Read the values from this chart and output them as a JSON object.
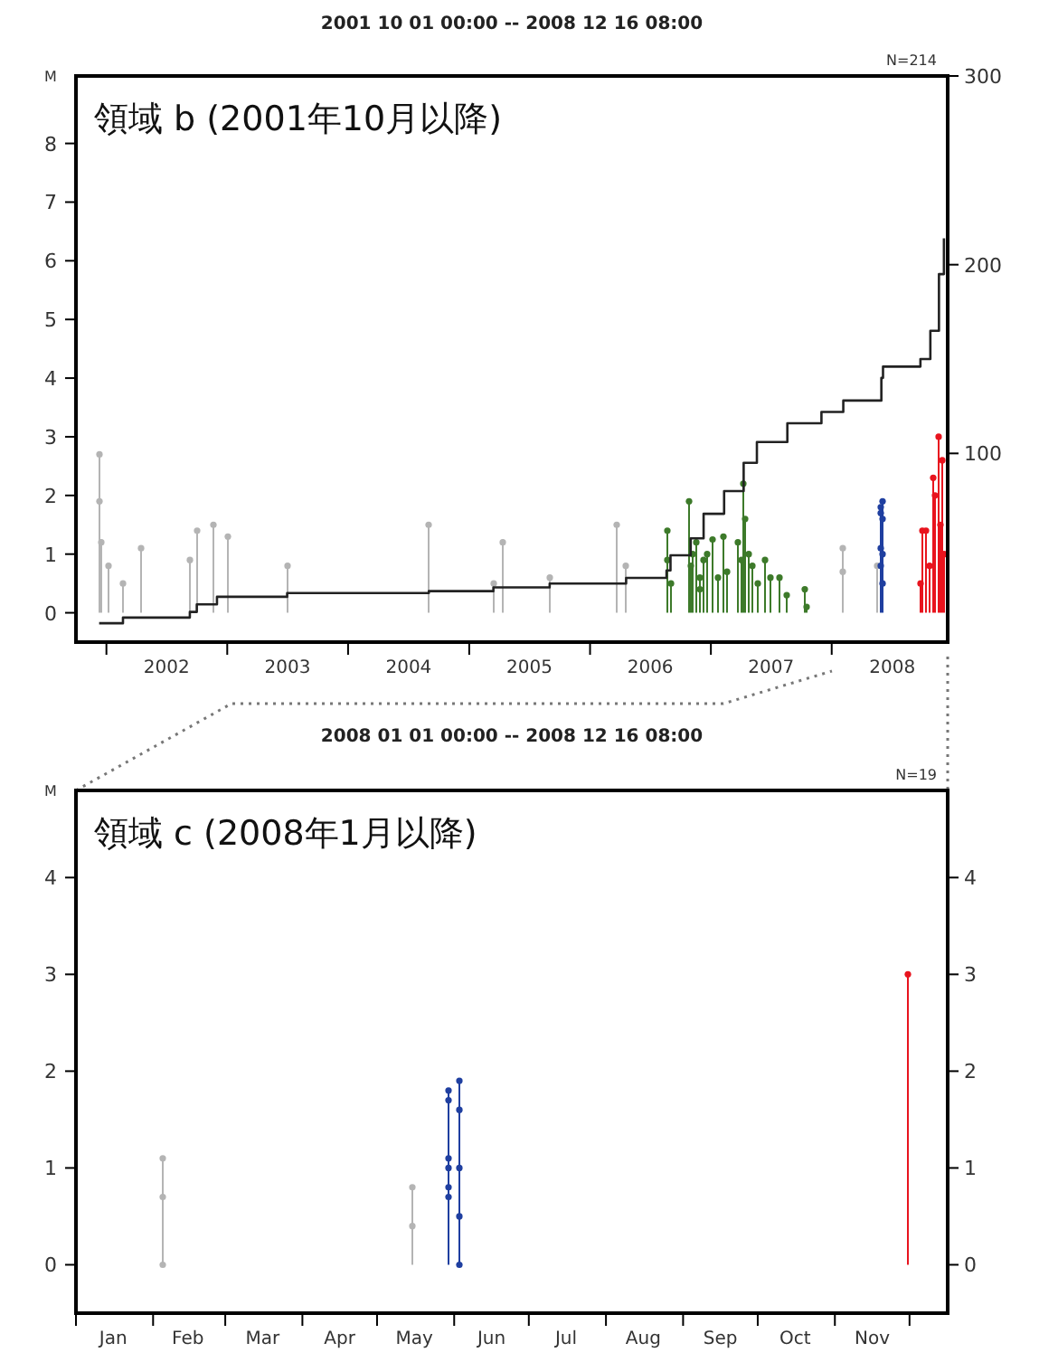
{
  "chart_data": [
    {
      "type": "lollipop",
      "title": "2001 10 01 00:00 -- 2008 12 16 08:00",
      "ylabel": "M",
      "annotations": [
        "N=214",
        "領域 b (2001年10月以降)"
      ],
      "xlim": [
        "2001-10-01",
        "2008-12-16T08:00"
      ],
      "xticks": [
        {
          "value": "2002-01-01",
          "label": null
        },
        {
          "value": "2002-07-02",
          "label": "2002"
        },
        {
          "value": "2003-01-01",
          "label": null
        },
        {
          "value": "2003-07-02",
          "label": "2003"
        },
        {
          "value": "2004-01-01",
          "label": null
        },
        {
          "value": "2004-07-02",
          "label": "2004"
        },
        {
          "value": "2005-01-01",
          "label": null
        },
        {
          "value": "2005-07-02",
          "label": "2005"
        },
        {
          "value": "2006-01-01",
          "label": null
        },
        {
          "value": "2006-07-02",
          "label": "2006"
        },
        {
          "value": "2007-01-01",
          "label": null
        },
        {
          "value": "2007-07-02",
          "label": "2007"
        },
        {
          "value": "2008-01-01",
          "label": null
        },
        {
          "value": "2008-07-02",
          "label": "2008"
        }
      ],
      "ylim": [
        -0.5,
        9.15
      ],
      "yticks": [
        0,
        1,
        2,
        3,
        4,
        5,
        6,
        7,
        8
      ],
      "y2lim": [
        0,
        300
      ],
      "y2ticks": [
        100,
        200,
        300
      ],
      "series": [
        {
          "color": "#b4b4b4",
          "marker": "circle",
          "x": [
            "2001-12-10",
            "2001-12-12",
            "2001-12-15",
            "2002-01-10",
            "2002-02-20",
            "2002-04-15",
            "2002-09-10",
            "2002-10-01",
            "2002-11-20",
            "2003-01-05",
            "2003-07-01",
            "2004-09-01",
            "2005-03-15",
            "2005-04-10",
            "2005-09-01",
            "2006-03-20",
            "2006-04-20",
            "2008-02-05",
            "2008-02-06",
            "2008-05-15"
          ],
          "values": [
            2.7,
            1.9,
            1.2,
            0.8,
            0.5,
            1.1,
            0.9,
            1.4,
            1.5,
            1.3,
            0.8,
            1.5,
            0.5,
            1.2,
            0.6,
            1.5,
            0.8,
            1.1,
            0.7,
            0.8
          ]
        },
        {
          "color": "#3d7a2a",
          "marker": "circle",
          "x": [
            "2006-08-20",
            "2006-08-25",
            "2006-09-01",
            "2006-10-25",
            "2006-11-01",
            "2006-11-05",
            "2006-12-01",
            "2006-11-20",
            "2006-11-28",
            "2006-12-10",
            "2006-12-20",
            "2007-01-05",
            "2007-01-20",
            "2007-02-10",
            "2007-02-20",
            "2007-03-25",
            "2007-04-01",
            "2007-04-10",
            "2007-04-15",
            "2007-04-25",
            "2007-05-05",
            "2007-05-20",
            "2007-06-15",
            "2007-07-01",
            "2007-07-25",
            "2007-08-20",
            "2007-10-10",
            "2007-10-15"
          ],
          "values": [
            1.4,
            0.9,
            0.5,
            1.9,
            0.8,
            1.0,
            0.6,
            1.2,
            0.4,
            0.9,
            1.0,
            1.25,
            0.6,
            1.3,
            0.7,
            1.2,
            0.9,
            2.2,
            1.6,
            1.0,
            0.8,
            0.5,
            0.9,
            0.6,
            0.6,
            0.3,
            0.4,
            0.1
          ]
        },
        {
          "color": "#1f3fa0",
          "marker": "circle",
          "x": [
            "2008-05-30",
            "2008-05-30",
            "2008-05-30",
            "2008-05-30",
            "2008-06-04",
            "2008-06-04",
            "2008-06-04",
            "2008-06-04"
          ],
          "values": [
            1.8,
            1.7,
            1.1,
            0.8,
            1.9,
            1.6,
            1.0,
            0.5
          ]
        },
        {
          "color": "#e8141e",
          "marker": "circle",
          "x": [
            "2008-09-25",
            "2008-10-01",
            "2008-10-10",
            "2008-10-25",
            "2008-11-01",
            "2008-11-10",
            "2008-11-20",
            "2008-11-25",
            "2008-12-01",
            "2008-12-05"
          ],
          "values": [
            0.5,
            1.4,
            1.4,
            0.8,
            2.3,
            2.0,
            3.0,
            1.5,
            2.6,
            1.0
          ]
        },
        {
          "type": "step",
          "axis": "y2",
          "color": "#222222",
          "marker": "none",
          "x": [
            "2001-12-10",
            "2002-02-20",
            "2002-09-10",
            "2002-10-01",
            "2002-12-01",
            "2003-07-01",
            "2004-09-01",
            "2005-03-15",
            "2005-09-01",
            "2006-04-20",
            "2006-08-20",
            "2006-09-01",
            "2006-11-01",
            "2006-12-10",
            "2007-02-10",
            "2007-04-10",
            "2007-05-20",
            "2007-08-20",
            "2007-12-01",
            "2008-02-05",
            "2008-05-30",
            "2008-06-04",
            "2008-09-25",
            "2008-10-25",
            "2008-11-20",
            "2008-12-05"
          ],
          "values": [
            10,
            13,
            16,
            20,
            24,
            26,
            27,
            29,
            31,
            34,
            38,
            46,
            55,
            68,
            80,
            95,
            106,
            116,
            122,
            128,
            140,
            146,
            150,
            165,
            195,
            214
          ]
        }
      ]
    },
    {
      "type": "lollipop",
      "title": "2008 01 01 00:00 -- 2008 12 16 08:00",
      "ylabel": "M",
      "annotations": [
        "N=19",
        "領域 c (2008年1月以降)"
      ],
      "xlim": [
        "2008-01-01",
        "2008-12-16T08:00"
      ],
      "xticks": [
        {
          "value": "2008-01-01",
          "label": null
        },
        {
          "value": "2008-01-16",
          "label": "Jan"
        },
        {
          "value": "2008-02-01",
          "label": null
        },
        {
          "value": "2008-02-15",
          "label": "Feb"
        },
        {
          "value": "2008-03-01",
          "label": null
        },
        {
          "value": "2008-03-16",
          "label": "Mar"
        },
        {
          "value": "2008-04-01",
          "label": null
        },
        {
          "value": "2008-04-16",
          "label": "Apr"
        },
        {
          "value": "2008-05-01",
          "label": null
        },
        {
          "value": "2008-05-16",
          "label": "May"
        },
        {
          "value": "2008-06-01",
          "label": null
        },
        {
          "value": "2008-06-16",
          "label": "Jun"
        },
        {
          "value": "2008-07-01",
          "label": null
        },
        {
          "value": "2008-07-16",
          "label": "Jul"
        },
        {
          "value": "2008-08-01",
          "label": null
        },
        {
          "value": "2008-08-16",
          "label": "Aug"
        },
        {
          "value": "2008-09-01",
          "label": null
        },
        {
          "value": "2008-09-16",
          "label": "Sep"
        },
        {
          "value": "2008-10-01",
          "label": null
        },
        {
          "value": "2008-10-16",
          "label": "Oct"
        },
        {
          "value": "2008-11-01",
          "label": null
        },
        {
          "value": "2008-11-16",
          "label": "Nov"
        },
        {
          "value": "2008-12-01",
          "label": null
        }
      ],
      "ylim": [
        -0.5,
        4.9
      ],
      "yticks": [
        0,
        1,
        2,
        3,
        4
      ],
      "y2lim": [
        -0.5,
        4.9
      ],
      "y2ticks": [
        0,
        1,
        2,
        3,
        4
      ],
      "series": [
        {
          "color": "#b4b4b4",
          "marker": "circle",
          "x": [
            "2008-02-05",
            "2008-02-05",
            "2008-02-05",
            "2008-05-15",
            "2008-05-15"
          ],
          "values": [
            1.1,
            0.7,
            0.0,
            0.8,
            0.4
          ]
        },
        {
          "color": "#1f3fa0",
          "marker": "circle",
          "x": [
            "2008-05-30",
            "2008-05-30",
            "2008-05-30",
            "2008-05-30",
            "2008-05-30",
            "2008-05-30",
            "2008-06-03",
            "2008-06-03",
            "2008-06-03",
            "2008-06-03",
            "2008-06-03"
          ],
          "values": [
            1.8,
            1.7,
            1.1,
            1.0,
            0.8,
            0.7,
            1.9,
            1.6,
            1.0,
            0.5,
            0.0
          ]
        },
        {
          "color": "#e8141e",
          "marker": "circle",
          "x": [
            "2008-11-30"
          ],
          "values": [
            3.0
          ]
        }
      ]
    }
  ]
}
